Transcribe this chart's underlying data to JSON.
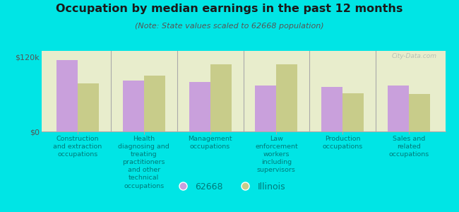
{
  "title": "Occupation by median earnings in the past 12 months",
  "subtitle": "(Note: State values scaled to 62668 population)",
  "categories": [
    "Construction\nand extraction\noccupations",
    "Health\ndiagnosing and\ntreating\npractitioners\nand other\ntechnical\noccupations",
    "Management\noccupations",
    "Law\nenforcement\nworkers\nincluding\nsupervisors",
    "Production\noccupations",
    "Sales and\nrelated\noccupations"
  ],
  "values_62668": [
    115000,
    82000,
    80000,
    74000,
    72000,
    74000
  ],
  "values_illinois": [
    78000,
    90000,
    108000,
    108000,
    62000,
    60000
  ],
  "color_62668": "#c9a0dc",
  "color_illinois": "#c8cc8a",
  "legend_labels": [
    "62668",
    "Illinois"
  ],
  "ylim": [
    0,
    130000
  ],
  "ytick_labels": [
    "$0",
    "$120k"
  ],
  "ytick_values": [
    0,
    120000
  ],
  "background_outer": "#00e5e5",
  "background_inner_top": "#e8edcc",
  "background_inner_bottom": "#f5f8e8",
  "bar_width": 0.32,
  "watermark": "City-Data.com",
  "label_color": "#007a7a",
  "title_color": "#1a1a1a",
  "subtitle_color": "#555555"
}
